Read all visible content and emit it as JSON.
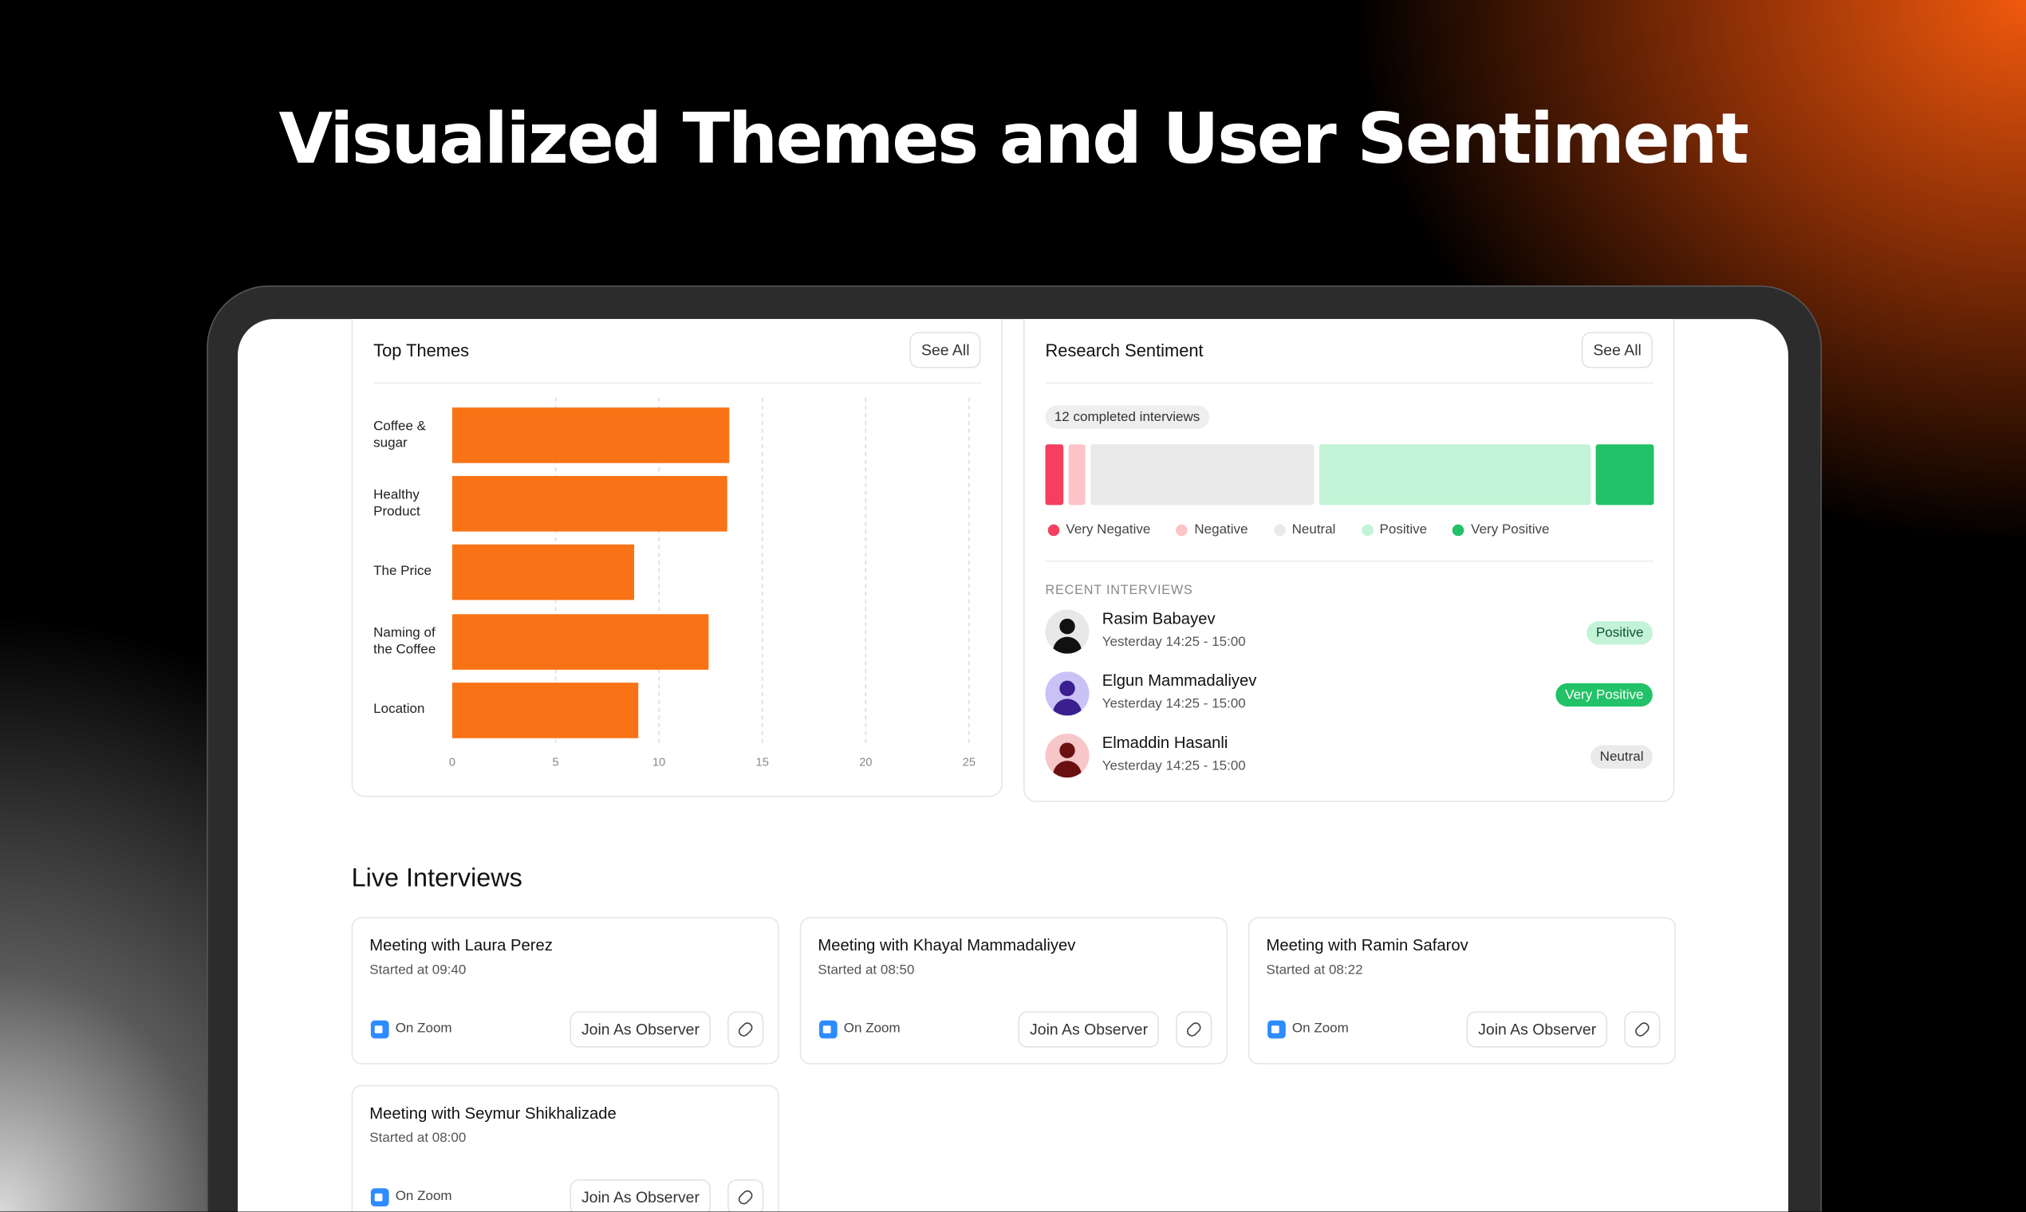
{
  "title": "Visualized Themes and User Sentiment",
  "top_themes": {
    "title": "Top Themes",
    "see_all": "See All",
    "chart_data": {
      "type": "hbar",
      "categories": [
        "Coffee & sugar",
        "Healthy Product",
        "The Price",
        "Naming of the Coffee",
        "Location"
      ],
      "values": [
        13.4,
        13.3,
        8.8,
        12.4,
        9
      ],
      "color": "#f97316",
      "xlim": [
        0,
        25
      ],
      "xticks": [
        0,
        5,
        10,
        15,
        20,
        25
      ],
      "grid": true
    }
  },
  "sentiment": {
    "title": "Research Sentiment",
    "see_all": "See All",
    "badge": "12 completed interviews",
    "chart_data": {
      "type": "stacked-bar",
      "series": [
        {
          "name": "Very Negative",
          "color": "#f43f5e",
          "values": [
            3
          ]
        },
        {
          "name": "Negative",
          "color": "#fbc4c9",
          "values": [
            3
          ]
        },
        {
          "name": "Neutral",
          "color": "#e9e9e9",
          "values": [
            38
          ]
        },
        {
          "name": "Positive",
          "color": "#c3f3d6",
          "values": [
            46
          ]
        },
        {
          "name": "Very Positive",
          "color": "#22c268",
          "values": [
            10
          ]
        }
      ]
    },
    "recent_label": "RECENT INTERVIEWS",
    "recent": [
      {
        "name": "Rasim Babayev",
        "time": "Yesterday 14:25 - 15:00",
        "status": "Positive"
      },
      {
        "name": "Elgun Mammadaliyev",
        "time": "Yesterday 14:25 - 15:00",
        "status": "Very Positive"
      },
      {
        "name": "Elmaddin Hasanli",
        "time": "Yesterday 14:25 - 15:00",
        "status": "Neutral"
      }
    ]
  },
  "live": {
    "title": "Live Interviews",
    "cards": [
      {
        "title": "Meeting with Laura Perez",
        "started": "Started at 09:40",
        "platform": "On Zoom",
        "button": "Join As Observer"
      },
      {
        "title": "Meeting with Khayal Mammadaliyev",
        "started": "Started at 08:50",
        "platform": "On Zoom",
        "button": "Join As Observer"
      },
      {
        "title": "Meeting with Ramin Safarov",
        "started": "Started at 08:22",
        "platform": "On Zoom",
        "button": "Join As Observer"
      },
      {
        "title": "Meeting with Seymur Shikhalizade",
        "started": "Started at 08:00",
        "platform": "On Zoom",
        "button": "Join As Observer"
      }
    ]
  }
}
